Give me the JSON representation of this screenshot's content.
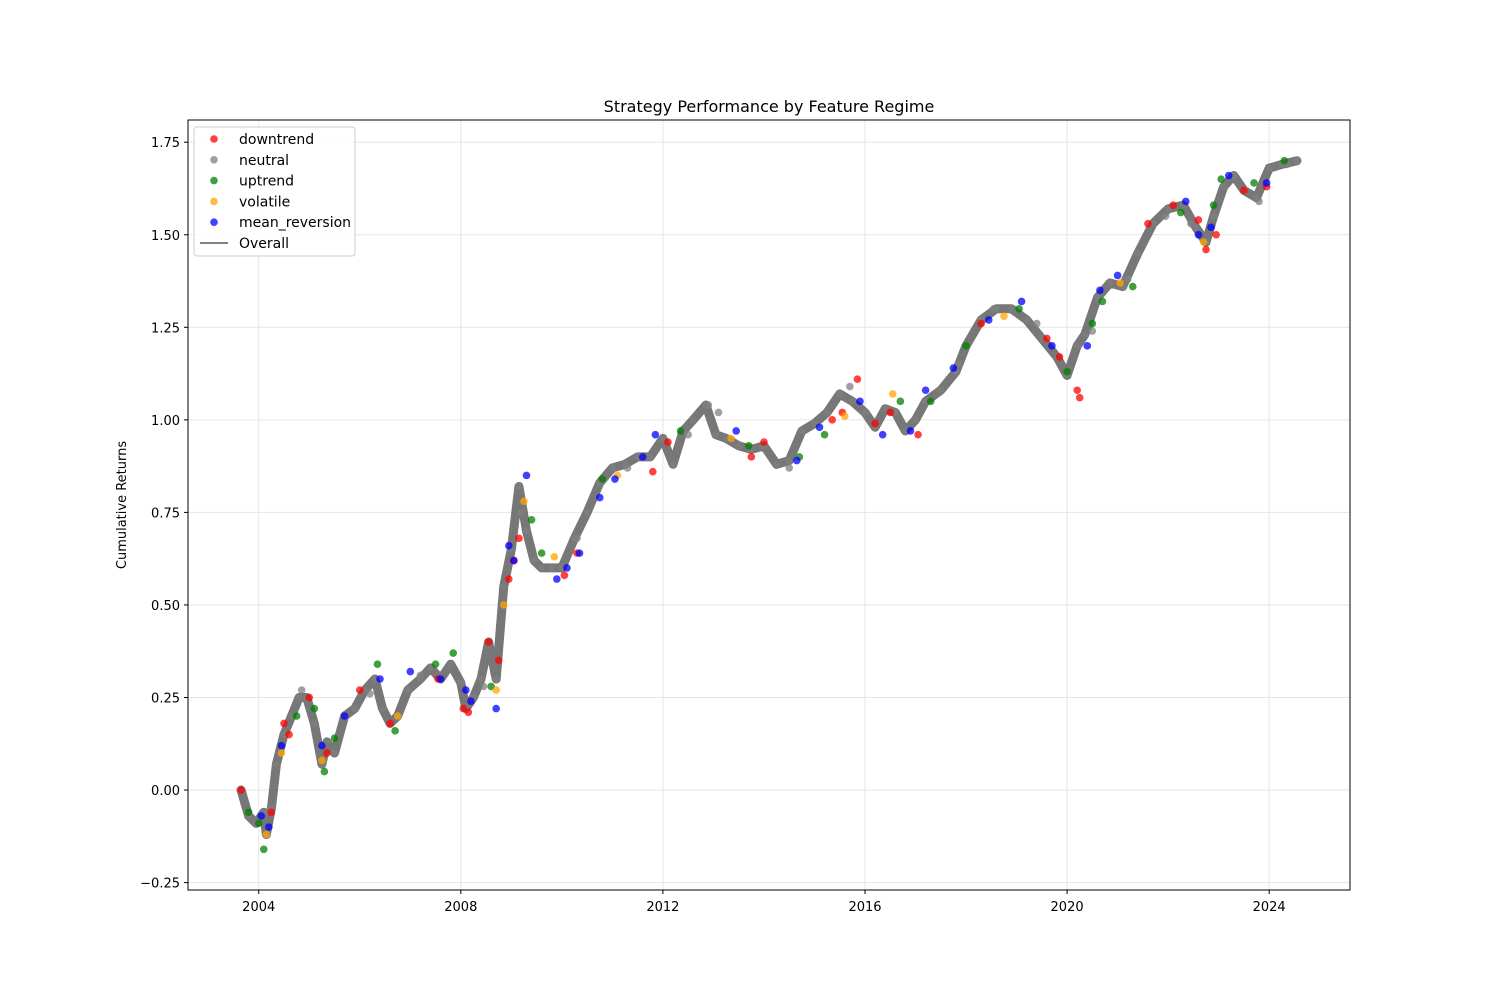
{
  "chart_data": {
    "type": "scatter",
    "title": "Strategy Performance by Feature Regime",
    "xlabel": "",
    "ylabel": "Cumulative Returns",
    "xlim": [
      2002.6,
      2025.6
    ],
    "ylim": [
      -0.27,
      1.81
    ],
    "x_ticks": [
      {
        "value": 2004,
        "label": "2004"
      },
      {
        "value": 2008,
        "label": "2008"
      },
      {
        "value": 2012,
        "label": "2012"
      },
      {
        "value": 2016,
        "label": "2016"
      },
      {
        "value": 2020,
        "label": "2020"
      },
      {
        "value": 2024,
        "label": "2024"
      }
    ],
    "y_ticks": [
      {
        "value": -0.25,
        "label": "−0.25"
      },
      {
        "value": 0.0,
        "label": "0.00"
      },
      {
        "value": 0.25,
        "label": "0.25"
      },
      {
        "value": 0.5,
        "label": "0.50"
      },
      {
        "value": 0.75,
        "label": "0.75"
      },
      {
        "value": 1.0,
        "label": "1.00"
      },
      {
        "value": 1.25,
        "label": "1.25"
      },
      {
        "value": 1.5,
        "label": "1.50"
      },
      {
        "value": 1.75,
        "label": "1.75"
      }
    ],
    "grid": true,
    "legend_position": "top-left",
    "legend": [
      {
        "label": "downtrend",
        "kind": "marker",
        "color": "#ff0000"
      },
      {
        "label": "neutral",
        "kind": "marker",
        "color": "#808080"
      },
      {
        "label": "uptrend",
        "kind": "marker",
        "color": "#008000"
      },
      {
        "label": "volatile",
        "kind": "marker",
        "color": "#ffa500"
      },
      {
        "label": "mean_reversion",
        "kind": "marker",
        "color": "#0000ff"
      },
      {
        "label": "Overall",
        "kind": "line",
        "color": "#808080"
      }
    ],
    "series": [
      {
        "name": "Overall",
        "x": [
          2003.65,
          2003.8,
          2003.95,
          2004.1,
          2004.15,
          2004.25,
          2004.35,
          2004.5,
          2004.65,
          2004.8,
          2004.95,
          2005.1,
          2005.25,
          2005.35,
          2005.5,
          2005.7,
          2005.9,
          2006.1,
          2006.3,
          2006.45,
          2006.6,
          2006.75,
          2006.95,
          2007.2,
          2007.4,
          2007.6,
          2007.8,
          2008.0,
          2008.1,
          2008.25,
          2008.4,
          2008.55,
          2008.7,
          2008.85,
          2009.0,
          2009.15,
          2009.3,
          2009.45,
          2009.6,
          2009.8,
          2010.0,
          2010.25,
          2010.5,
          2010.75,
          2011.0,
          2011.25,
          2011.5,
          2011.75,
          2012.0,
          2012.2,
          2012.4,
          2012.6,
          2012.85,
          2013.05,
          2013.25,
          2013.5,
          2013.75,
          2014.0,
          2014.25,
          2014.5,
          2014.75,
          2015.0,
          2015.25,
          2015.5,
          2015.75,
          2016.0,
          2016.2,
          2016.4,
          2016.6,
          2016.8,
          2017.0,
          2017.2,
          2017.5,
          2017.8,
          2018.0,
          2018.3,
          2018.6,
          2018.9,
          2019.2,
          2019.5,
          2019.8,
          2020.0,
          2020.2,
          2020.35,
          2020.6,
          2020.85,
          2021.1,
          2021.4,
          2021.7,
          2022.0,
          2022.3,
          2022.55,
          2022.75,
          2022.9,
          2023.1,
          2023.3,
          2023.5,
          2023.75,
          2024.0,
          2024.25,
          2024.55
        ],
        "y": [
          0.0,
          -0.07,
          -0.09,
          -0.06,
          -0.12,
          -0.05,
          0.07,
          0.15,
          0.2,
          0.25,
          0.25,
          0.18,
          0.07,
          0.13,
          0.1,
          0.2,
          0.22,
          0.27,
          0.3,
          0.22,
          0.18,
          0.2,
          0.27,
          0.3,
          0.33,
          0.3,
          0.34,
          0.29,
          0.22,
          0.25,
          0.3,
          0.4,
          0.3,
          0.55,
          0.65,
          0.82,
          0.7,
          0.62,
          0.6,
          0.6,
          0.6,
          0.68,
          0.75,
          0.83,
          0.87,
          0.88,
          0.9,
          0.9,
          0.95,
          0.88,
          0.97,
          1.0,
          1.04,
          0.96,
          0.95,
          0.93,
          0.92,
          0.93,
          0.88,
          0.89,
          0.97,
          0.99,
          1.02,
          1.07,
          1.05,
          1.02,
          0.98,
          1.03,
          1.02,
          0.97,
          1.0,
          1.05,
          1.08,
          1.13,
          1.2,
          1.27,
          1.3,
          1.3,
          1.27,
          1.22,
          1.17,
          1.12,
          1.2,
          1.23,
          1.33,
          1.37,
          1.36,
          1.45,
          1.53,
          1.57,
          1.58,
          1.52,
          1.48,
          1.55,
          1.63,
          1.66,
          1.62,
          1.6,
          1.68,
          1.69,
          1.7
        ]
      }
    ],
    "regimes": [
      {
        "name": "downtrend",
        "color": "#ff0000",
        "x": [
          2003.65,
          2004.25,
          2004.5,
          2004.6,
          2005.0,
          2005.35,
          2006.0,
          2006.6,
          2007.55,
          2008.05,
          2008.15,
          2008.55,
          2008.75,
          2008.95,
          2009.05,
          2009.15,
          2010.05,
          2010.3,
          2011.8,
          2012.1,
          2013.75,
          2014.0,
          2015.35,
          2015.55,
          2015.85,
          2016.2,
          2016.5,
          2017.05,
          2018.3,
          2019.6,
          2019.85,
          2020.2,
          2020.25,
          2021.6,
          2022.1,
          2022.6,
          2022.75,
          2022.95,
          2023.5,
          2023.95
        ],
        "y": [
          0.0,
          -0.06,
          0.18,
          0.15,
          0.25,
          0.1,
          0.27,
          0.18,
          0.3,
          0.22,
          0.21,
          0.4,
          0.35,
          0.57,
          0.62,
          0.68,
          0.58,
          0.64,
          0.86,
          0.94,
          0.9,
          0.94,
          1.0,
          1.02,
          1.11,
          0.99,
          1.02,
          0.96,
          1.26,
          1.22,
          1.17,
          1.08,
          1.06,
          1.53,
          1.58,
          1.54,
          1.46,
          1.5,
          1.62,
          1.63
        ]
      },
      {
        "name": "neutral",
        "color": "#808080",
        "x": [
          2004.85,
          2006.2,
          2007.2,
          2008.45,
          2009.2,
          2010.3,
          2011.3,
          2012.5,
          2012.9,
          2013.1,
          2014.5,
          2015.7,
          2017.85,
          2018.55,
          2019.4,
          2020.5,
          2021.2,
          2021.95,
          2022.45,
          2023.3,
          2023.8,
          2024.35,
          2024.55
        ],
        "y": [
          0.27,
          0.26,
          0.31,
          0.28,
          0.75,
          0.68,
          0.87,
          0.96,
          1.04,
          1.02,
          0.87,
          1.09,
          1.15,
          1.3,
          1.26,
          1.24,
          1.38,
          1.55,
          1.53,
          1.66,
          1.59,
          1.69,
          1.7
        ]
      },
      {
        "name": "uptrend",
        "color": "#008000",
        "x": [
          2003.8,
          2004.0,
          2004.1,
          2004.75,
          2005.1,
          2005.3,
          2005.5,
          2006.35,
          2006.7,
          2007.5,
          2007.85,
          2008.6,
          2009.4,
          2009.6,
          2010.8,
          2012.35,
          2013.7,
          2014.7,
          2015.2,
          2016.7,
          2017.3,
          2018.0,
          2019.05,
          2020.0,
          2020.5,
          2020.7,
          2021.3,
          2022.25,
          2022.9,
          2023.05,
          2023.7,
          2024.3
        ],
        "y": [
          -0.06,
          -0.09,
          -0.16,
          0.2,
          0.22,
          0.05,
          0.14,
          0.34,
          0.16,
          0.34,
          0.37,
          0.28,
          0.73,
          0.64,
          0.84,
          0.97,
          0.93,
          0.9,
          0.96,
          1.05,
          1.05,
          1.2,
          1.3,
          1.13,
          1.26,
          1.32,
          1.36,
          1.56,
          1.58,
          1.65,
          1.64,
          1.7
        ]
      },
      {
        "name": "volatile",
        "color": "#ffa500",
        "x": [
          2004.15,
          2004.45,
          2005.25,
          2006.75,
          2008.7,
          2008.85,
          2009.25,
          2009.85,
          2011.1,
          2013.35,
          2015.6,
          2016.55,
          2018.75,
          2021.05,
          2022.7
        ],
        "y": [
          -0.12,
          0.1,
          0.08,
          0.2,
          0.27,
          0.5,
          0.78,
          0.63,
          0.85,
          0.95,
          1.01,
          1.07,
          1.28,
          1.37,
          1.48
        ]
      },
      {
        "name": "mean_reversion",
        "color": "#0000ff",
        "x": [
          2004.05,
          2004.2,
          2004.45,
          2005.25,
          2005.7,
          2006.4,
          2007.0,
          2007.6,
          2008.1,
          2008.2,
          2008.7,
          2008.95,
          2009.05,
          2009.3,
          2009.9,
          2010.1,
          2010.35,
          2010.75,
          2011.05,
          2011.6,
          2011.85,
          2013.45,
          2014.65,
          2015.1,
          2015.9,
          2016.35,
          2016.9,
          2017.2,
          2017.75,
          2018.45,
          2019.1,
          2019.7,
          2020.4,
          2020.65,
          2021.0,
          2022.35,
          2022.6,
          2022.85,
          2023.2,
          2023.95
        ],
        "y": [
          -0.07,
          -0.1,
          0.12,
          0.12,
          0.2,
          0.3,
          0.32,
          0.3,
          0.27,
          0.24,
          0.22,
          0.66,
          0.62,
          0.85,
          0.57,
          0.6,
          0.64,
          0.79,
          0.84,
          0.9,
          0.96,
          0.97,
          0.89,
          0.98,
          1.05,
          0.96,
          0.97,
          1.08,
          1.14,
          1.27,
          1.32,
          1.2,
          1.2,
          1.35,
          1.39,
          1.59,
          1.5,
          1.52,
          1.66,
          1.64
        ]
      }
    ]
  }
}
